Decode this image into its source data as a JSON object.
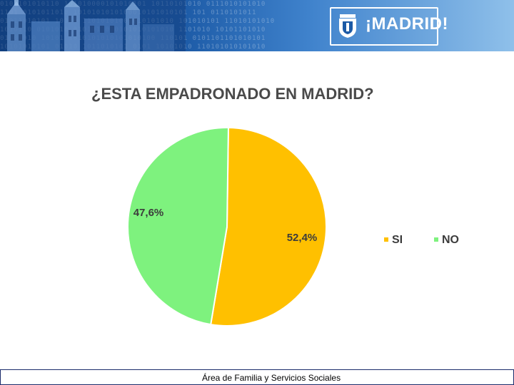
{
  "header": {
    "brand_text": "¡MADRID!",
    "binary_pattern": "0101101010110 101010000101010101 10110101010 0111010101010\n1101 0101011010 1010101010100010101010101 101 0110101011\n01011010101 10110 11010101001010101010 101010101 11010101010\n1010110 0101010 0101011010101010101010 1101010 10101101010\n01101010 10101 1010101010101010100 110101 0101101101010101\n10101010101 01010 1011010101 0101 10101010 110101010101010",
    "colors": {
      "bar": "#1c5aa6"
    }
  },
  "chart_data": {
    "type": "pie",
    "title": "¿ESTA EMPADRONADO EN MADRID?",
    "categories": [
      "SI",
      "NO"
    ],
    "values": [
      52.4,
      47.6
    ],
    "value_labels": [
      "52,4%",
      "47,6%"
    ],
    "colors": [
      "#ffc000",
      "#7ef27e"
    ],
    "legend_placement": "right"
  },
  "footer": {
    "text": "Área de Familia y Servicios Sociales"
  }
}
